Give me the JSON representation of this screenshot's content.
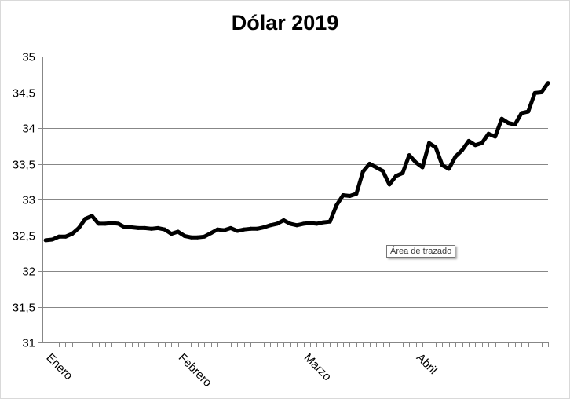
{
  "chart_data": {
    "type": "line",
    "title": "Dólar 2019",
    "ylim": [
      31,
      35
    ],
    "y_ticks": [
      "31",
      "31,5",
      "32",
      "32,5",
      "33",
      "33,5",
      "34",
      "34,5",
      "35"
    ],
    "grid": "horizontal",
    "legend": "none",
    "month_labels": [
      {
        "label": "Enero",
        "index": 0
      },
      {
        "label": "Febrero",
        "index": 20
      },
      {
        "label": "Marzo",
        "index": 39
      },
      {
        "label": "Abril",
        "index": 56
      }
    ],
    "series": [
      {
        "color": "#000000",
        "values": [
          32.43,
          32.44,
          32.48,
          32.48,
          32.52,
          32.6,
          32.73,
          32.77,
          32.66,
          32.66,
          32.67,
          32.66,
          32.61,
          32.61,
          32.6,
          32.6,
          32.59,
          32.6,
          32.58,
          32.52,
          32.55,
          32.49,
          32.47,
          32.47,
          32.48,
          32.53,
          32.58,
          32.57,
          32.6,
          32.56,
          32.58,
          32.59,
          32.59,
          32.61,
          32.64,
          32.66,
          32.71,
          32.66,
          32.64,
          32.66,
          32.67,
          32.66,
          32.68,
          32.69,
          32.92,
          33.06,
          33.05,
          33.08,
          33.39,
          33.5,
          33.45,
          33.4,
          33.21,
          33.33,
          33.37,
          33.62,
          33.52,
          33.45,
          33.79,
          33.73,
          33.48,
          33.43,
          33.6,
          33.69,
          33.82,
          33.76,
          33.79,
          33.92,
          33.88,
          34.13,
          34.07,
          34.05,
          34.21,
          34.23,
          34.49,
          34.5,
          34.63
        ]
      }
    ]
  },
  "tooltip": {
    "text": "Área de trazado"
  }
}
